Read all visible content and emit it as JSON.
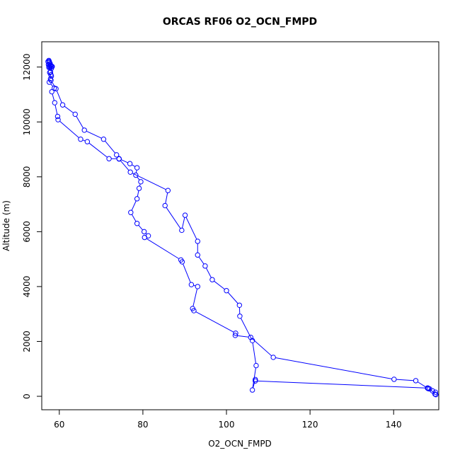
{
  "chart_data": {
    "type": "line",
    "title": "ORCAS RF06 O2_OCN_FMPD",
    "xlabel": "O2_OCN_FMPD",
    "ylabel": "Altitude (m)",
    "xlim": [
      55.8,
      150.8
    ],
    "ylim": [
      0,
      12200
    ],
    "xticks": [
      "60",
      "80",
      "100",
      "120",
      "140"
    ],
    "yticks": [
      "0",
      "2000",
      "4000",
      "6000",
      "8000",
      "10000",
      "12000"
    ],
    "grid": false,
    "legend": "none",
    "series": [
      {
        "color": "#0000ff",
        "marker": "open-circle",
        "points": [
          [
            57.5,
            12240
          ],
          [
            57.3,
            12200
          ],
          [
            57.6,
            12170
          ],
          [
            57.8,
            12130
          ],
          [
            57.4,
            12090
          ],
          [
            57.9,
            12070
          ],
          [
            57.6,
            12050
          ],
          [
            58.0,
            12040
          ],
          [
            57.7,
            12020
          ],
          [
            58.2,
            12010
          ],
          [
            57.5,
            11990
          ],
          [
            57.8,
            11970
          ],
          [
            58.1,
            11950
          ],
          [
            57.7,
            11800
          ],
          [
            58.0,
            11720
          ],
          [
            58.1,
            11670
          ],
          [
            57.9,
            11570
          ],
          [
            57.6,
            11450
          ],
          [
            58.8,
            11230
          ],
          [
            58.2,
            11100
          ],
          [
            58.9,
            10700
          ],
          [
            59.6,
            10200
          ],
          [
            59.7,
            10080
          ],
          [
            65.1,
            9370
          ],
          [
            66.7,
            9280
          ],
          [
            71.9,
            8660
          ],
          [
            74.3,
            8660
          ],
          [
            76.9,
            8480
          ],
          [
            78.6,
            8330
          ],
          [
            78.3,
            8060
          ],
          [
            79.5,
            7820
          ],
          [
            79.1,
            7580
          ],
          [
            78.6,
            7200
          ],
          [
            77.1,
            6700
          ],
          [
            78.6,
            6300
          ],
          [
            80.3,
            6000
          ],
          [
            81.3,
            5850
          ],
          [
            80.4,
            5790
          ],
          [
            89.1,
            4970
          ],
          [
            89.4,
            4900
          ],
          [
            91.6,
            4070
          ],
          [
            93.1,
            4000
          ],
          [
            91.9,
            3200
          ],
          [
            92.2,
            3120
          ],
          [
            102.2,
            2300
          ],
          [
            102.1,
            2220
          ],
          [
            105.8,
            2150
          ],
          [
            111.2,
            1420
          ],
          [
            140.1,
            620
          ],
          [
            145.3,
            570
          ],
          [
            148.1,
            300
          ],
          [
            148.3,
            280
          ],
          [
            149.3,
            200
          ],
          [
            150.0,
            150
          ],
          [
            149.9,
            80
          ],
          [
            150.1,
            60
          ],
          [
            148.6,
            270
          ],
          [
            148.2,
            300
          ],
          [
            106.9,
            560
          ],
          [
            106.9,
            610
          ],
          [
            106.2,
            230
          ],
          [
            107.1,
            1120
          ],
          [
            106.2,
            2030
          ],
          [
            103.2,
            2920
          ],
          [
            103.1,
            3320
          ],
          [
            100.0,
            3850
          ],
          [
            96.6,
            4250
          ],
          [
            94.9,
            4750
          ],
          [
            93.1,
            5150
          ],
          [
            93.1,
            5650
          ],
          [
            90.1,
            6600
          ],
          [
            89.3,
            6050
          ],
          [
            85.3,
            6950
          ],
          [
            86.0,
            7500
          ],
          [
            77.0,
            8170
          ],
          [
            74.3,
            8650
          ],
          [
            73.7,
            8800
          ],
          [
            70.6,
            9370
          ],
          [
            66.0,
            9700
          ],
          [
            63.8,
            10280
          ],
          [
            60.8,
            10620
          ],
          [
            59.2,
            11210
          ],
          [
            58.0,
            11520
          ],
          [
            57.9,
            11820
          ],
          [
            58.3,
            12020
          ],
          [
            57.6,
            12200
          ]
        ]
      }
    ]
  }
}
